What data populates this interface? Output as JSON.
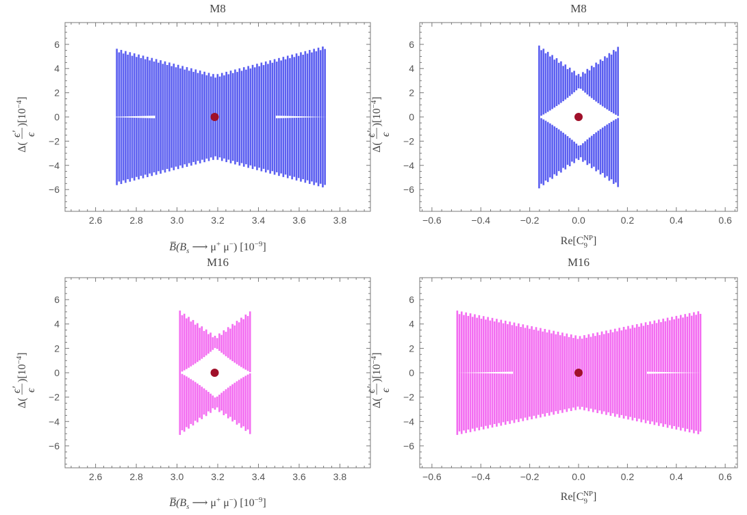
{
  "figure": {
    "colors": {
      "blue": "#5a5ef0",
      "magenta": "#f36cf1",
      "marker": "#a0102a",
      "frame": "#777777"
    },
    "axis_text": {
      "ylabel_main": "Δ(",
      "ylabel_num": "ϵ'",
      "ylabel_dash": "—",
      "ylabel_den": "ϵ",
      "ylabel_rest": ")[10",
      "ylabel_exp": "−4",
      "ylabel_close": "]",
      "xlabel_br_head": "B̅(B",
      "xlabel_br_sub": "s",
      "xlabel_br_mid": " ⟶ μ",
      "xlabel_br_sup1": "+",
      "xlabel_br_mid2": " μ",
      "xlabel_br_sup2": "−",
      "xlabel_br_tail": ") [10",
      "xlabel_br_exp": "−9",
      "xlabel_br_close": "]",
      "xlabel_c9_head": "Re[C",
      "xlabel_c9_sub": "9",
      "xlabel_c9_sup": "NP",
      "xlabel_c9_close": "]"
    }
  },
  "chart_data": [
    {
      "type": "scatter",
      "title": "M8",
      "xlabel_kind": "br",
      "xlim": [
        2.45,
        3.95
      ],
      "ylim": [
        -7.8,
        7.8
      ],
      "xticks": [
        2.6,
        2.8,
        3.0,
        3.2,
        3.4,
        3.6,
        3.8
      ],
      "xtick_labels": [
        "2.6",
        "2.8",
        "3.0",
        "3.2",
        "3.4",
        "3.6",
        "3.8"
      ],
      "yticks": [
        -6,
        -4,
        -2,
        0,
        2,
        4,
        6
      ],
      "ytick_labels": [
        "−6",
        "−4",
        "−2",
        "0",
        "2",
        "4",
        "6"
      ],
      "region": {
        "x_min": 2.7,
        "x_center": 3.185,
        "x_max": 3.73,
        "y_max": 5.9,
        "y_inner": 0.3,
        "y_edge_min": 3.5
      },
      "color": "blue",
      "central_point": {
        "x": 3.185,
        "y": 0
      }
    },
    {
      "type": "scatter",
      "title": "M8",
      "xlabel_kind": "c9",
      "xlim": [
        -0.65,
        0.65
      ],
      "ylim": [
        -7.8,
        7.8
      ],
      "xticks": [
        -0.6,
        -0.4,
        -0.2,
        0.0,
        0.2,
        0.4,
        0.6
      ],
      "xtick_labels": [
        "−0.6",
        "−0.4",
        "−0.2",
        "0.0",
        "0.2",
        "0.4",
        "0.6"
      ],
      "yticks": [
        -6,
        -4,
        -2,
        0,
        2,
        4,
        6
      ],
      "ytick_labels": [
        "−6",
        "−4",
        "−2",
        "0",
        "2",
        "4",
        "6"
      ],
      "region": {
        "x_min": -0.165,
        "x_center": 0.0,
        "x_max": 0.165,
        "y_max": 5.9,
        "y_inner": 2.7,
        "y_edge_min": 3.5
      },
      "color": "blue",
      "central_point": {
        "x": 0.0,
        "y": 0
      }
    },
    {
      "type": "scatter",
      "title": "M16",
      "xlabel_kind": "br",
      "xlim": [
        2.45,
        3.95
      ],
      "ylim": [
        -7.8,
        7.8
      ],
      "xticks": [
        2.6,
        2.8,
        3.0,
        3.2,
        3.4,
        3.6,
        3.8
      ],
      "xtick_labels": [
        "2.6",
        "2.8",
        "3.0",
        "3.2",
        "3.4",
        "3.6",
        "3.8"
      ],
      "yticks": [
        -6,
        -4,
        -2,
        0,
        2,
        4,
        6
      ],
      "ytick_labels": [
        "−6",
        "−4",
        "−2",
        "0",
        "2",
        "4",
        "6"
      ],
      "region": {
        "x_min": 3.01,
        "x_center": 3.185,
        "x_max": 3.36,
        "y_max": 5.1,
        "y_inner": 2.3,
        "y_edge_min": 3.0
      },
      "color": "magenta",
      "central_point": {
        "x": 3.185,
        "y": 0
      }
    },
    {
      "type": "scatter",
      "title": "M16",
      "xlabel_kind": "c9",
      "xlim": [
        -0.65,
        0.65
      ],
      "ylim": [
        -7.8,
        7.8
      ],
      "xticks": [
        -0.6,
        -0.4,
        -0.2,
        0.0,
        0.2,
        0.4,
        0.6
      ],
      "xtick_labels": [
        "−0.6",
        "−0.4",
        "−0.2",
        "0.0",
        "0.2",
        "0.4",
        "0.6"
      ],
      "yticks": [
        -6,
        -4,
        -2,
        0,
        2,
        4,
        6
      ],
      "ytick_labels": [
        "−6",
        "−4",
        "−2",
        "0",
        "2",
        "4",
        "6"
      ],
      "region": {
        "x_min": -0.5,
        "x_center": 0.0,
        "x_max": 0.5,
        "y_max": 5.1,
        "y_inner": 0.25,
        "y_edge_min": 3.0
      },
      "color": "magenta",
      "central_point": {
        "x": 0.0,
        "y": 0
      }
    }
  ]
}
